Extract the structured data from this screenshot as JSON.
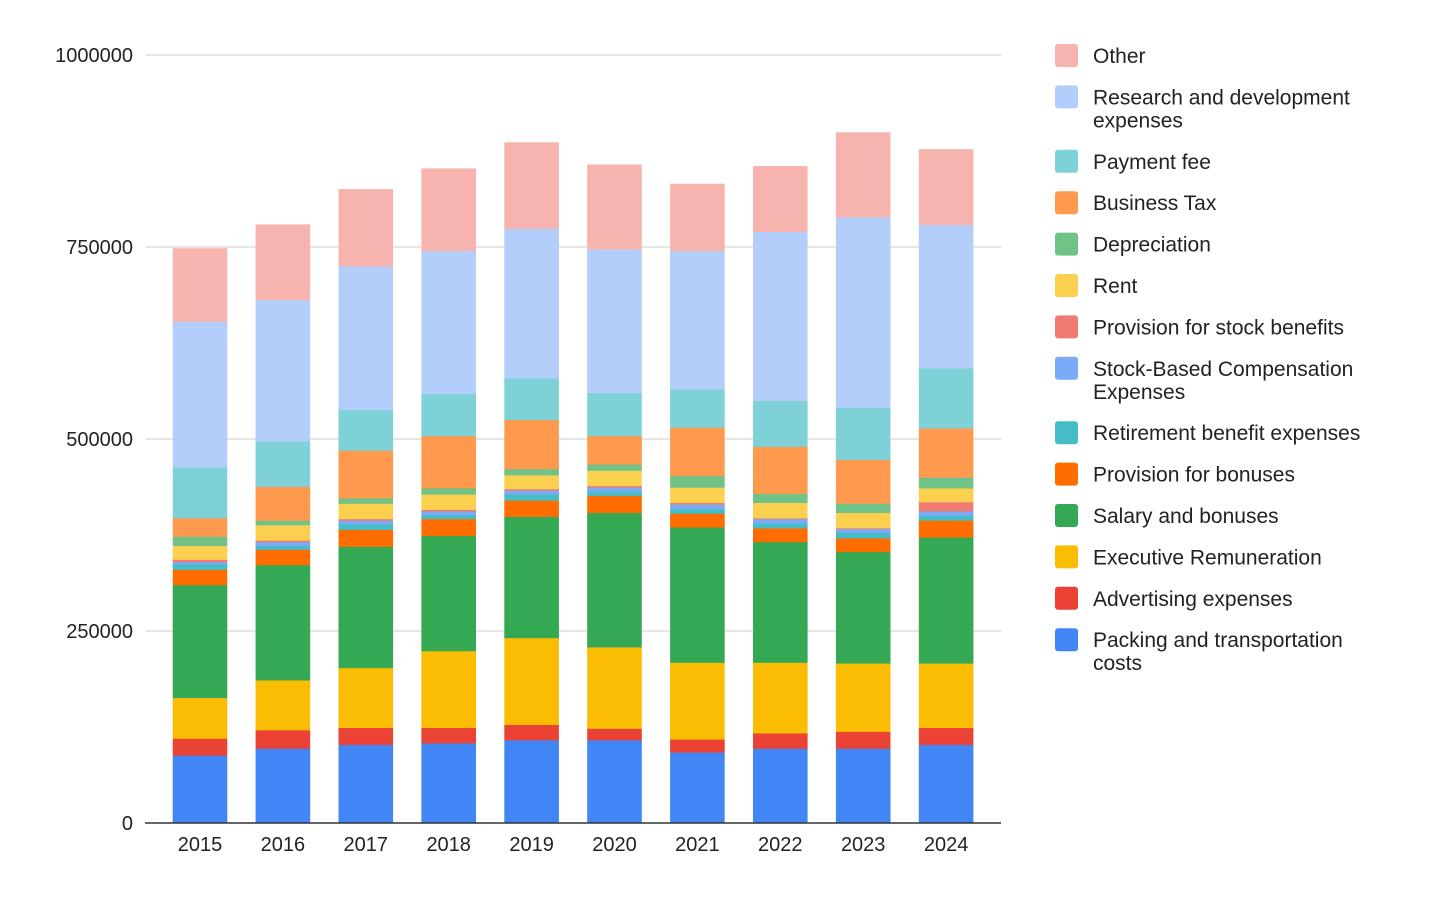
{
  "chart_data": {
    "type": "bar",
    "stacked": true,
    "categories": [
      "2015",
      "2016",
      "2017",
      "2018",
      "2019",
      "2020",
      "2021",
      "2022",
      "2023",
      "2024"
    ],
    "ylim": [
      0,
      1000000
    ],
    "yticks": [
      "0",
      "250000",
      "500000",
      "750000",
      "1000000"
    ],
    "grid": true,
    "legend_position": "right",
    "series": [
      {
        "name": "Packing and transportation costs",
        "color": "#4285F4",
        "values": [
          88000,
          97000,
          102000,
          104000,
          108000,
          108000,
          92000,
          97000,
          97000,
          102000
        ]
      },
      {
        "name": "Advertising expenses",
        "color": "#EA4335",
        "values": [
          22000,
          24000,
          22000,
          20000,
          20000,
          15000,
          17000,
          20000,
          22000,
          22000
        ]
      },
      {
        "name": "Executive Remuneration",
        "color": "#FBBC04",
        "values": [
          53000,
          65000,
          78000,
          100000,
          113000,
          106000,
          100000,
          92000,
          89000,
          84000
        ]
      },
      {
        "name": "Salary and bonuses",
        "color": "#34A853",
        "values": [
          147000,
          150000,
          158000,
          150000,
          158000,
          175000,
          176000,
          157000,
          145000,
          164000
        ]
      },
      {
        "name": "Provision for bonuses",
        "color": "#FF6D01",
        "values": [
          20000,
          20000,
          22000,
          22000,
          21000,
          22000,
          18000,
          18000,
          18000,
          22000
        ]
      },
      {
        "name": "Retirement benefit expenses",
        "color": "#46BDC6",
        "values": [
          7000,
          5000,
          7000,
          5000,
          8000,
          6000,
          6000,
          6000,
          7000,
          6000
        ]
      },
      {
        "name": "Stock-Based Compensation Expenses",
        "color": "#7BAAF7",
        "values": [
          3000,
          5000,
          5000,
          5000,
          5000,
          5000,
          6000,
          6000,
          5000,
          6000
        ]
      },
      {
        "name": "Provision for stock benefits",
        "color": "#F07B72",
        "values": [
          3000,
          2000,
          2000,
          2000,
          2000,
          2000,
          2000,
          1000,
          1000,
          12000
        ]
      },
      {
        "name": "Rent",
        "color": "#FCD04F",
        "values": [
          18000,
          20000,
          20000,
          20000,
          18000,
          20000,
          20000,
          20000,
          20000,
          18000
        ]
      },
      {
        "name": "Depreciation",
        "color": "#71C287",
        "values": [
          12000,
          6000,
          7000,
          8000,
          8000,
          8000,
          15000,
          12000,
          12000,
          14000
        ]
      },
      {
        "name": "Business Tax",
        "color": "#FF994D",
        "values": [
          24000,
          44000,
          62000,
          68000,
          64000,
          37000,
          63000,
          61000,
          57000,
          64000
        ]
      },
      {
        "name": "Payment fee",
        "color": "#7ED1D7",
        "values": [
          66000,
          59000,
          53000,
          55000,
          54000,
          56000,
          50000,
          60000,
          68000,
          78000
        ]
      },
      {
        "name": "Research and development expenses",
        "color": "#B3CEFB",
        "values": [
          190000,
          184000,
          187000,
          186000,
          195000,
          187000,
          180000,
          220000,
          248000,
          187000
        ]
      },
      {
        "name": "Other",
        "color": "#F7B4AE",
        "values": [
          95000,
          98000,
          100000,
          107000,
          112000,
          110000,
          87000,
          85000,
          110000,
          98000
        ]
      }
    ]
  }
}
